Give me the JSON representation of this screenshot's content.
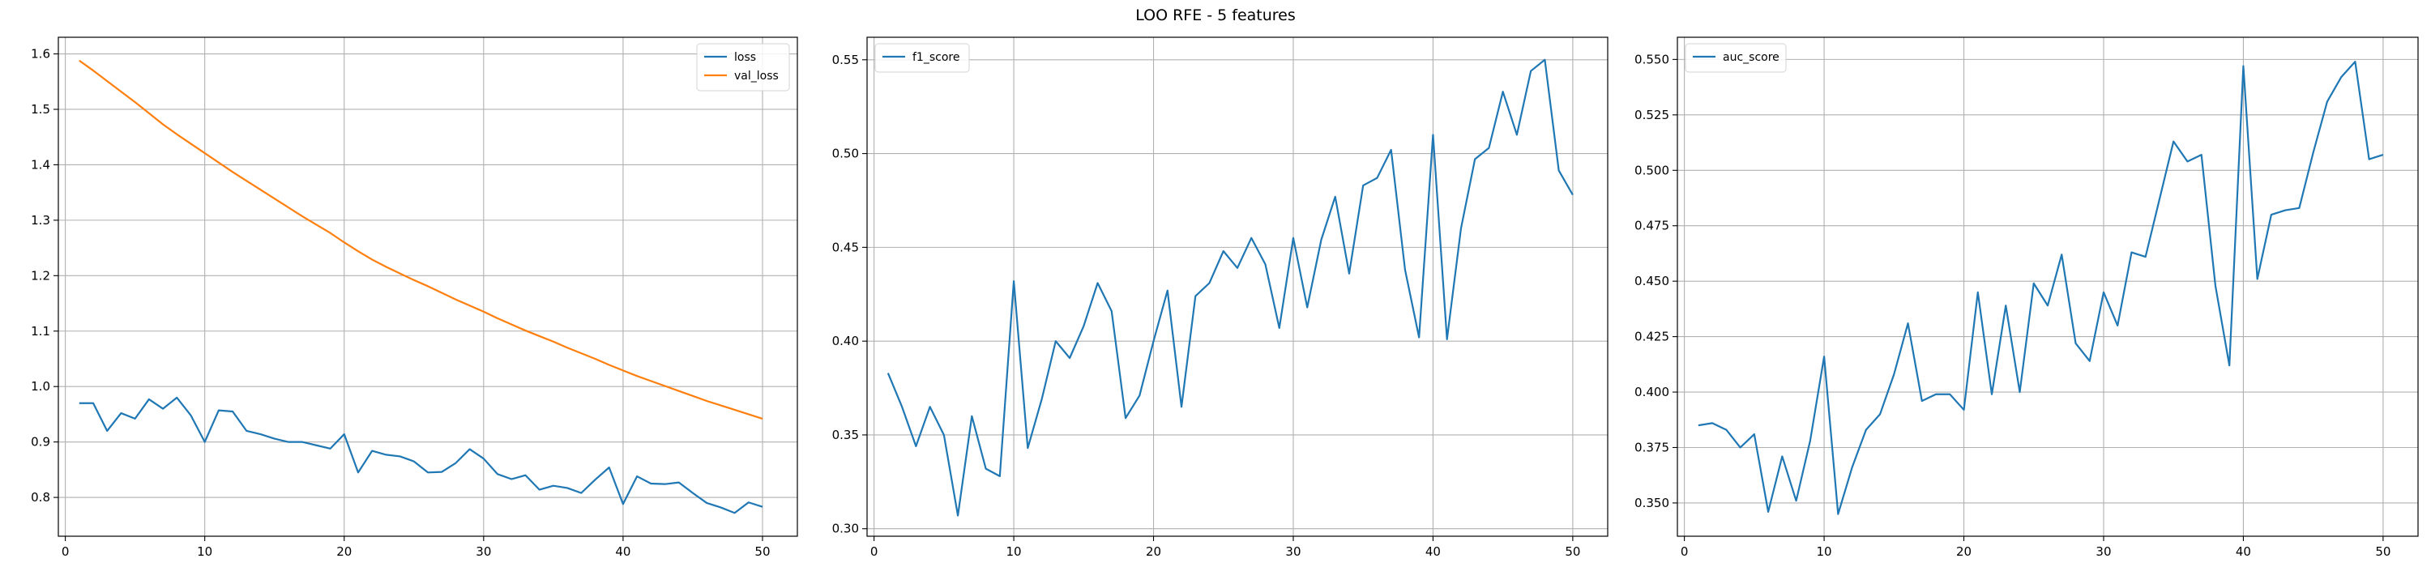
{
  "figure": {
    "title": "LOO RFE - 5 features"
  },
  "chart_data": [
    {
      "type": "line",
      "x": [
        1,
        2,
        3,
        4,
        5,
        6,
        7,
        8,
        9,
        10,
        11,
        12,
        13,
        14,
        15,
        16,
        17,
        18,
        19,
        20,
        21,
        22,
        23,
        24,
        25,
        26,
        27,
        28,
        29,
        30,
        31,
        32,
        33,
        34,
        35,
        36,
        37,
        38,
        39,
        40,
        41,
        42,
        43,
        44,
        45,
        46,
        47,
        48,
        49,
        50
      ],
      "xlim": [
        -0.5,
        52.5
      ],
      "xticks": [
        0,
        10,
        20,
        30,
        40,
        50
      ],
      "ylim": [
        0.73,
        1.63
      ],
      "yticks": [
        0.8,
        0.9,
        1.0,
        1.1,
        1.2,
        1.3,
        1.4,
        1.5,
        1.6
      ],
      "ytick_decimals": 1,
      "grid": true,
      "legend_position": "upper right",
      "series": [
        {
          "name": "loss",
          "color": "#1f77b4",
          "values": [
            0.97,
            0.97,
            0.92,
            0.952,
            0.942,
            0.977,
            0.96,
            0.98,
            0.948,
            0.9,
            0.957,
            0.955,
            0.92,
            0.914,
            0.906,
            0.9,
            0.9,
            0.894,
            0.888,
            0.914,
            0.845,
            0.884,
            0.877,
            0.874,
            0.865,
            0.845,
            0.846,
            0.862,
            0.887,
            0.87,
            0.842,
            0.833,
            0.84,
            0.814,
            0.821,
            0.817,
            0.808,
            0.832,
            0.854,
            0.788,
            0.838,
            0.825,
            0.824,
            0.827,
            0.808,
            0.79,
            0.782,
            0.772,
            0.791,
            0.783
          ]
        },
        {
          "name": "val_loss",
          "color": "#ff7f0e",
          "values": [
            1.588,
            1.57,
            1.551,
            1.532,
            1.513,
            1.493,
            1.473,
            1.455,
            1.438,
            1.421,
            1.404,
            1.387,
            1.371,
            1.355,
            1.339,
            1.323,
            1.307,
            1.292,
            1.277,
            1.26,
            1.244,
            1.229,
            1.216,
            1.204,
            1.192,
            1.181,
            1.169,
            1.157,
            1.146,
            1.135,
            1.123,
            1.112,
            1.101,
            1.091,
            1.081,
            1.07,
            1.06,
            1.05,
            1.039,
            1.029,
            1.019,
            1.01,
            1.001,
            0.992,
            0.983,
            0.974,
            0.966,
            0.958,
            0.95,
            0.942
          ]
        }
      ]
    },
    {
      "type": "line",
      "x": [
        1,
        2,
        3,
        4,
        5,
        6,
        7,
        8,
        9,
        10,
        11,
        12,
        13,
        14,
        15,
        16,
        17,
        18,
        19,
        20,
        21,
        22,
        23,
        24,
        25,
        26,
        27,
        28,
        29,
        30,
        31,
        32,
        33,
        34,
        35,
        36,
        37,
        38,
        39,
        40,
        41,
        42,
        43,
        44,
        45,
        46,
        47,
        48,
        49,
        50
      ],
      "xlim": [
        -0.5,
        52.5
      ],
      "xticks": [
        0,
        10,
        20,
        30,
        40,
        50
      ],
      "ylim": [
        0.296,
        0.562
      ],
      "yticks": [
        0.3,
        0.35,
        0.4,
        0.45,
        0.5,
        0.55
      ],
      "ytick_decimals": 2,
      "grid": true,
      "legend_position": "upper left",
      "series": [
        {
          "name": "f1_score",
          "color": "#1f77b4",
          "values": [
            0.383,
            0.365,
            0.344,
            0.365,
            0.35,
            0.307,
            0.36,
            0.332,
            0.328,
            0.432,
            0.343,
            0.369,
            0.4,
            0.391,
            0.408,
            0.431,
            0.416,
            0.359,
            0.371,
            0.4,
            0.427,
            0.365,
            0.424,
            0.431,
            0.448,
            0.439,
            0.455,
            0.441,
            0.407,
            0.455,
            0.418,
            0.454,
            0.477,
            0.436,
            0.483,
            0.487,
            0.502,
            0.438,
            0.402,
            0.51,
            0.401,
            0.46,
            0.497,
            0.503,
            0.533,
            0.51,
            0.544,
            0.55,
            0.491,
            0.478
          ]
        }
      ]
    },
    {
      "type": "line",
      "x": [
        1,
        2,
        3,
        4,
        5,
        6,
        7,
        8,
        9,
        10,
        11,
        12,
        13,
        14,
        15,
        16,
        17,
        18,
        19,
        20,
        21,
        22,
        23,
        24,
        25,
        26,
        27,
        28,
        29,
        30,
        31,
        32,
        33,
        34,
        35,
        36,
        37,
        38,
        39,
        40,
        41,
        42,
        43,
        44,
        45,
        46,
        47,
        48,
        49,
        50
      ],
      "xlim": [
        -0.5,
        52.5
      ],
      "xticks": [
        0,
        10,
        20,
        30,
        40,
        50
      ],
      "ylim": [
        0.335,
        0.56
      ],
      "yticks": [
        0.35,
        0.375,
        0.4,
        0.425,
        0.45,
        0.475,
        0.5,
        0.525,
        0.55
      ],
      "ytick_decimals": 3,
      "grid": true,
      "legend_position": "upper left",
      "series": [
        {
          "name": "auc_score",
          "color": "#1f77b4",
          "values": [
            0.385,
            0.386,
            0.383,
            0.375,
            0.381,
            0.346,
            0.371,
            0.351,
            0.378,
            0.416,
            0.345,
            0.366,
            0.383,
            0.39,
            0.408,
            0.431,
            0.396,
            0.399,
            0.399,
            0.392,
            0.445,
            0.399,
            0.439,
            0.4,
            0.449,
            0.439,
            0.462,
            0.422,
            0.414,
            0.445,
            0.43,
            0.463,
            0.461,
            0.487,
            0.513,
            0.504,
            0.507,
            0.448,
            0.412,
            0.547,
            0.451,
            0.48,
            0.482,
            0.483,
            0.508,
            0.531,
            0.542,
            0.549,
            0.505,
            0.507
          ]
        }
      ]
    }
  ]
}
